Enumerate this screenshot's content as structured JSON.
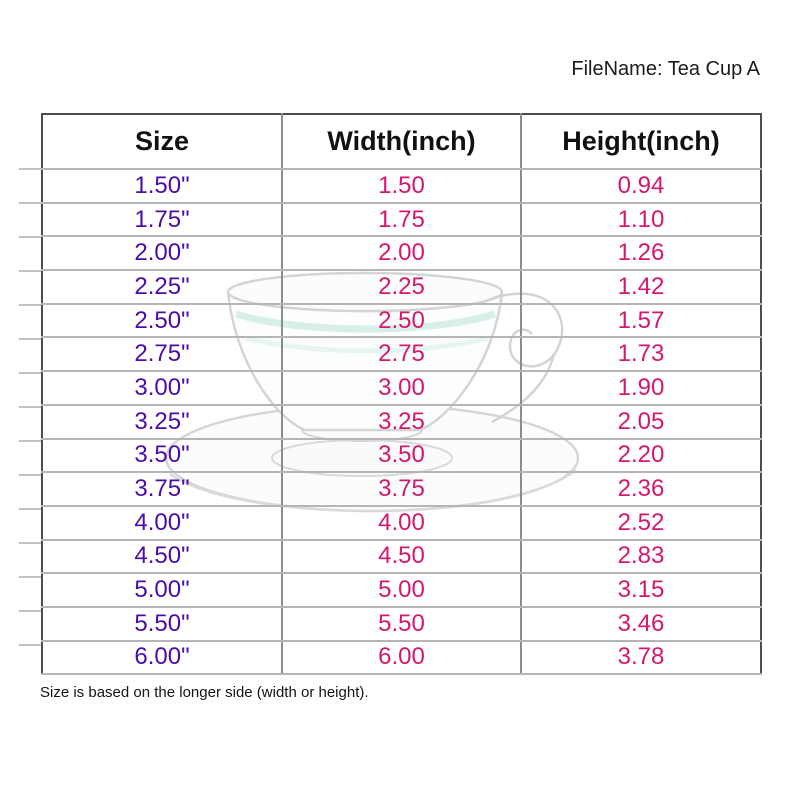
{
  "page": {
    "filename_label": "FileName: Tea Cup A",
    "footnote": "Size is based on the longer side (width or height)."
  },
  "table": {
    "columns": [
      "Size",
      "Width(inch)",
      "Height(inch)"
    ],
    "rows": [
      [
        "1.50\"",
        "1.50",
        "0.94"
      ],
      [
        "1.75\"",
        "1.75",
        "1.10"
      ],
      [
        "2.00\"",
        "2.00",
        "1.26"
      ],
      [
        "2.25\"",
        "2.25",
        "1.42"
      ],
      [
        "2.50\"",
        "2.50",
        "1.57"
      ],
      [
        "2.75\"",
        "2.75",
        "1.73"
      ],
      [
        "3.00\"",
        "3.00",
        "1.90"
      ],
      [
        "3.25\"",
        "3.25",
        "2.05"
      ],
      [
        "3.50\"",
        "3.50",
        "2.20"
      ],
      [
        "3.75\"",
        "3.75",
        "2.36"
      ],
      [
        "4.00\"",
        "4.00",
        "2.52"
      ],
      [
        "4.50\"",
        "4.50",
        "2.83"
      ],
      [
        "5.00\"",
        "5.00",
        "3.15"
      ],
      [
        "5.50\"",
        "5.50",
        "3.46"
      ],
      [
        "6.00\"",
        "6.00",
        "3.78"
      ]
    ]
  },
  "colors": {
    "size_text": "#4A0DA8",
    "value_text": "#D5186F",
    "header_text": "#111111",
    "border_outer": "#4d4d4d",
    "border_column": "#8c8c8c",
    "border_row": "#b5b5b5"
  },
  "watermark": {
    "icon": "tea-cup-and-saucer-icon"
  }
}
